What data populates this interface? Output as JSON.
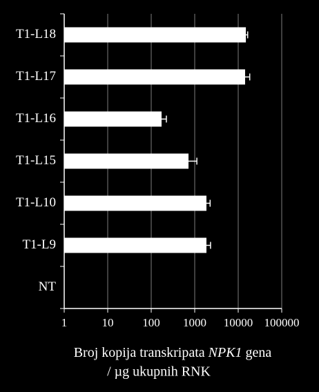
{
  "chart_data": {
    "type": "bar",
    "orientation": "horizontal",
    "log_x": true,
    "grid": true,
    "categories": [
      "T1-L18",
      "T1-L17",
      "T1-L16",
      "T1-L15",
      "T1-L10",
      "T1-L9",
      "NT"
    ],
    "values": [
      15000,
      14400,
      173,
      720,
      1860,
      1860,
      null
    ],
    "errors": [
      1500,
      4000,
      50,
      400,
      400,
      450,
      null
    ],
    "color": "#ffffff",
    "xlim": [
      1,
      100000
    ],
    "xticks": [
      1,
      10,
      100,
      1000,
      10000,
      100000
    ],
    "xlabel": [
      "Broj kopija transkripata",
      "NPK1",
      "gena",
      "/ µg ukupnih RNK"
    ]
  }
}
